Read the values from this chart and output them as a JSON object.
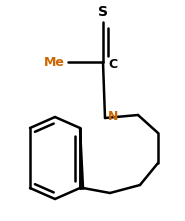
{
  "bg_color": "#ffffff",
  "line_color": "#000000",
  "N_color": "#cc6600",
  "S_color": "#000000",
  "Me_color": "#cc6600",
  "line_width": 1.8,
  "S_label": "S",
  "C_label": "C",
  "Me_label": "Me",
  "N_label": "N",
  "figsize": [
    1.85,
    2.21
  ],
  "dpi": 100
}
